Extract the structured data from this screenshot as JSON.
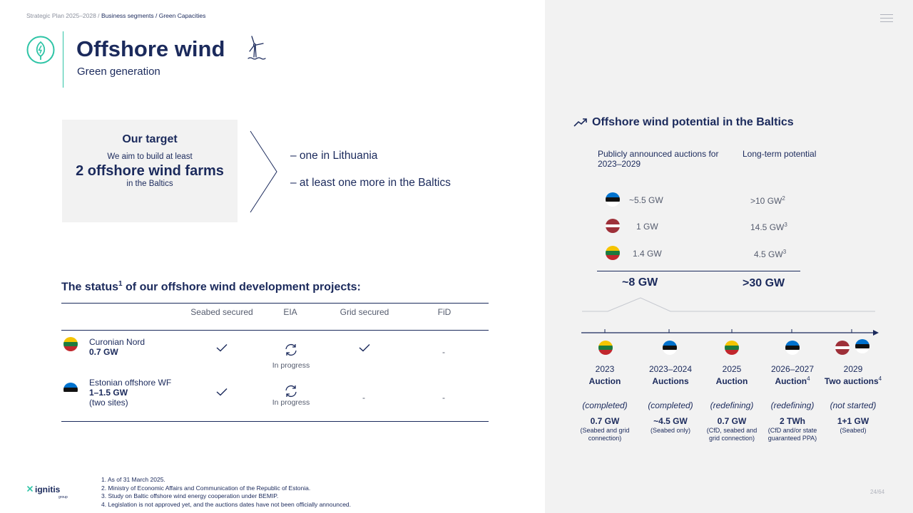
{
  "breadcrumb": {
    "prefix": "Strategic Plan 2025–2028 /",
    "current": "Business segments / Green Capacities"
  },
  "header": {
    "title": "Offshore wind",
    "subtitle": "Green generation"
  },
  "target": {
    "title": "Our target",
    "line1": "We aim to build at least",
    "main": "2 offshore wind farms",
    "line2": "in the Baltics",
    "bullets": [
      "– one in Lithuania",
      "– at least one more in the Baltics"
    ]
  },
  "status": {
    "heading": "The status",
    "heading_sup": "1",
    "heading_rest": " of our offshore wind development projects:",
    "columns": [
      "Seabed secured",
      "EIA",
      "Grid secured",
      "FiD"
    ],
    "rows": [
      {
        "name": "Curonian Nord",
        "capacity": "0.7 GW",
        "extra": "",
        "flag": "lithuania",
        "eia": "In progress",
        "fid": "-"
      },
      {
        "name": "Estonian offshore WF",
        "capacity": "1–1.5 GW",
        "extra": "(two sites)",
        "flag": "estonia",
        "eia": "In progress",
        "grid": "-",
        "fid": "-"
      }
    ]
  },
  "footnotes": [
    "1.  As of 31 March 2025.",
    "2.  Ministry of Economic Affairs and Communication of the Republic of Estonia.",
    "3.  Study on Baltic offshore wind energy cooperation under BEMIP.",
    "4.  Legislation is not approved yet, and the auctions dates have not been officially announced."
  ],
  "logo_text": "ignitis",
  "logo_sub": "group",
  "page_number": "24/64",
  "potential": {
    "title": "Offshore wind potential in the Baltics",
    "col_announced": "Publicly announced auctions for 2023–2029",
    "col_longterm": "Long-term potential",
    "rows": [
      {
        "flag": "estonia",
        "announced": "~5.5 GW",
        "longterm": ">10 GW",
        "sup": "2"
      },
      {
        "flag": "latvia",
        "announced": "1 GW",
        "longterm": "14.5 GW",
        "sup": "3"
      },
      {
        "flag": "lithuania",
        "announced": "1.4 GW",
        "longterm": "4.5 GW",
        "sup": "3"
      }
    ],
    "total_announced": "~8 GW",
    "total_longterm": ">30 GW"
  },
  "timeline": [
    {
      "year": "2023",
      "label": "Auction",
      "sup": "",
      "status": "(completed)",
      "capacity": "0.7 GW",
      "note": "(Seabed and grid connection)"
    },
    {
      "year": "2023–2024",
      "label": "Auctions",
      "sup": "",
      "status": "(completed)",
      "capacity": "~4.5 GW",
      "note": "(Seabed only)"
    },
    {
      "year": "2025",
      "label": "Auction",
      "sup": "",
      "status": "(redefining)",
      "capacity": "0.7 GW",
      "note": "(CfD, seabed and grid connection)"
    },
    {
      "year": "2026–2027",
      "label": "Auction",
      "sup": "4",
      "status": "(redefining)",
      "capacity": "2 TWh",
      "note": "(CfD and/or state guaranteed PPA)"
    },
    {
      "year": "2029",
      "label": "Two auctions",
      "sup": "4",
      "status": "(not started)",
      "capacity": "1+1 GW",
      "note": "(Seabed)"
    }
  ],
  "colors": {
    "navy": "#1b2a5c",
    "teal": "#2ec4a6",
    "panel": "#f2f2f2"
  }
}
